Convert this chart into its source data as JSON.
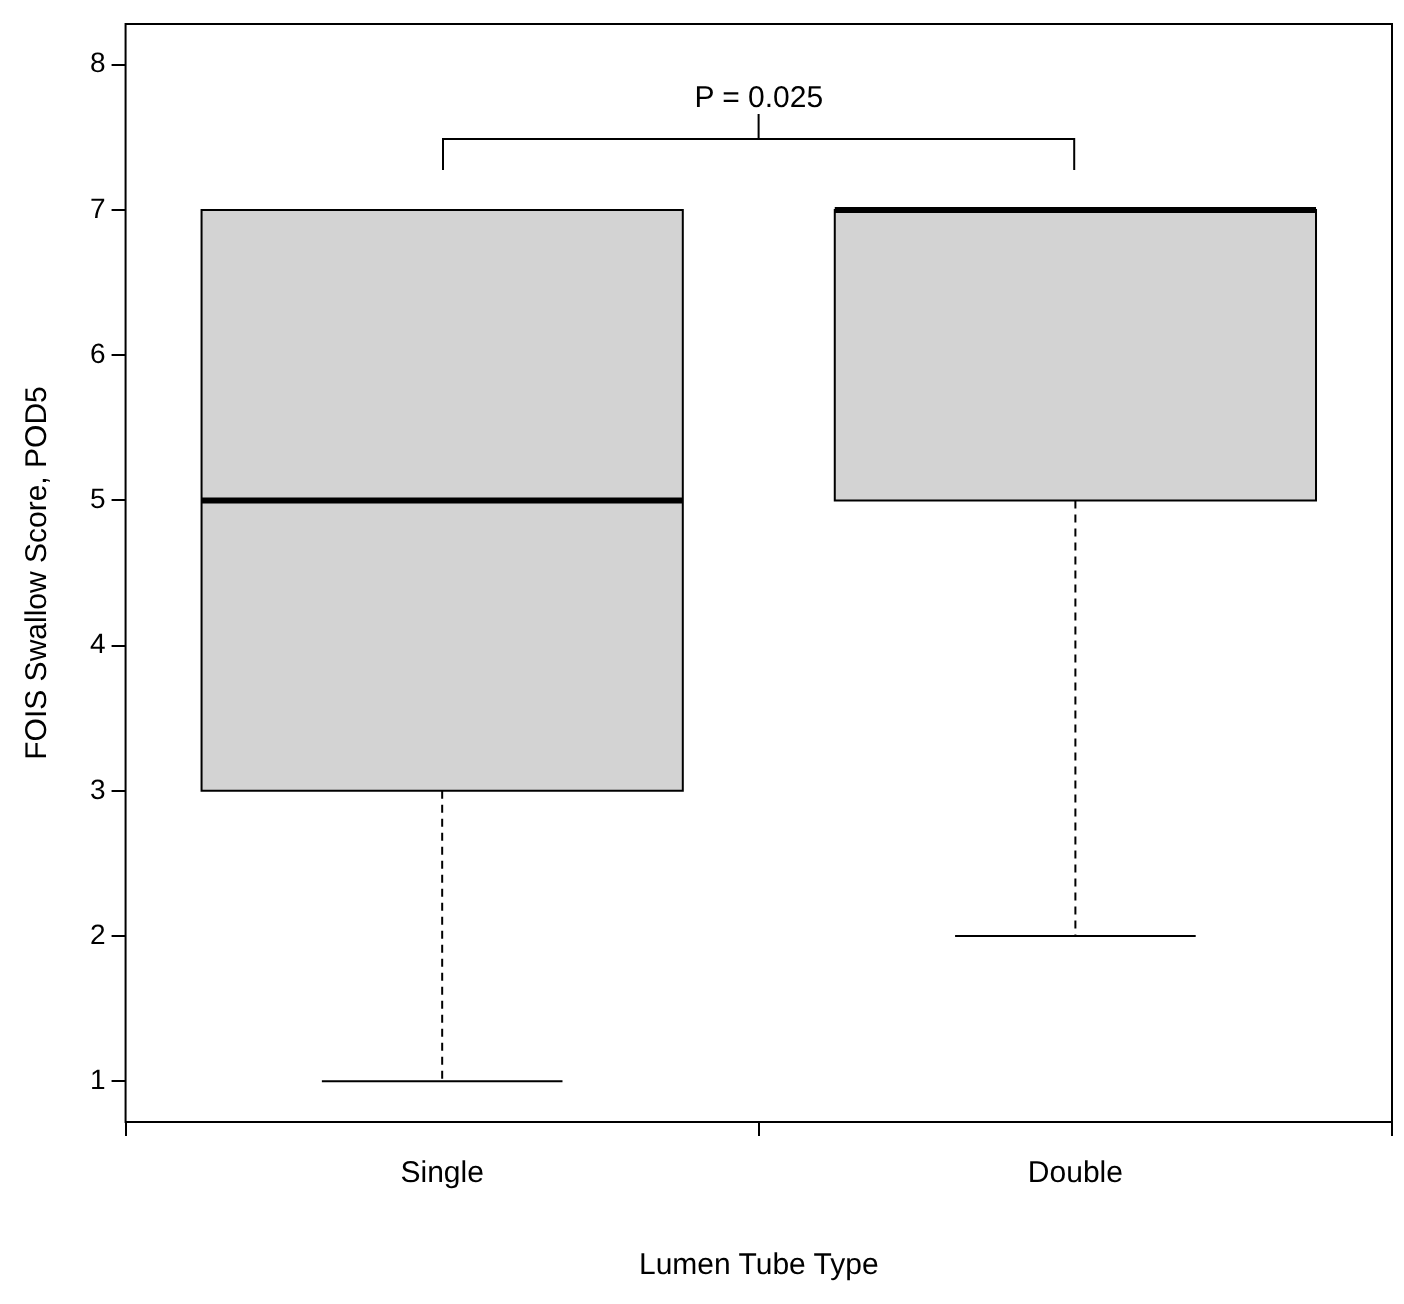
{
  "chart_data": {
    "type": "box",
    "xlabel": "Lumen Tube Type",
    "ylabel": "FOIS Swallow Score, POD5",
    "categories": [
      "Single",
      "Double"
    ],
    "series": [
      {
        "color": "#d3d3d3",
        "boxes": [
          {
            "low": 1,
            "q1": 3,
            "median": 5,
            "q3": 7,
            "high": 7
          },
          {
            "low": 2,
            "q1": 5,
            "median": 7,
            "q3": 7,
            "high": 7
          }
        ]
      }
    ],
    "ylim": [
      0.72,
      8.28
    ],
    "yticks": [
      1,
      2,
      3,
      4,
      5,
      6,
      7,
      8
    ],
    "grid": false,
    "legend": false,
    "annotations": [
      "P = 0.025"
    ]
  }
}
